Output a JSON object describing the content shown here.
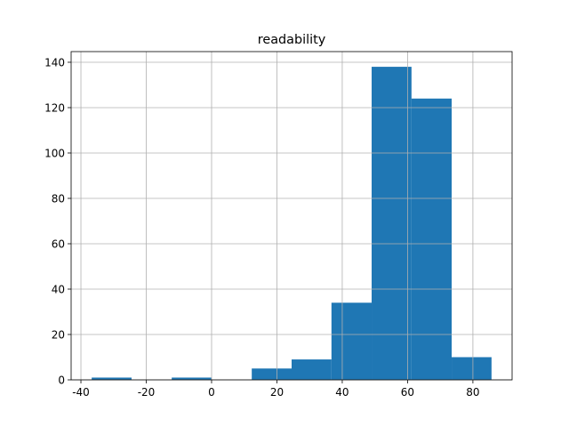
{
  "chart_data": {
    "type": "histogram",
    "title": "readability",
    "bins": [
      -36.7,
      -24.5,
      -12.2,
      0.0,
      12.3,
      24.5,
      36.7,
      49.0,
      61.2,
      73.5,
      85.7
    ],
    "counts": [
      1,
      0,
      1,
      0,
      5,
      9,
      34,
      138,
      124,
      10
    ],
    "color": "#1f77b4",
    "xlim": [
      -43,
      92
    ],
    "xticks": [
      -40,
      -20,
      0,
      20,
      40,
      60,
      80
    ],
    "ylim": [
      0,
      144.7
    ],
    "yticks": [
      0,
      20,
      40,
      60,
      80,
      100,
      120,
      140
    ],
    "grid": true
  }
}
